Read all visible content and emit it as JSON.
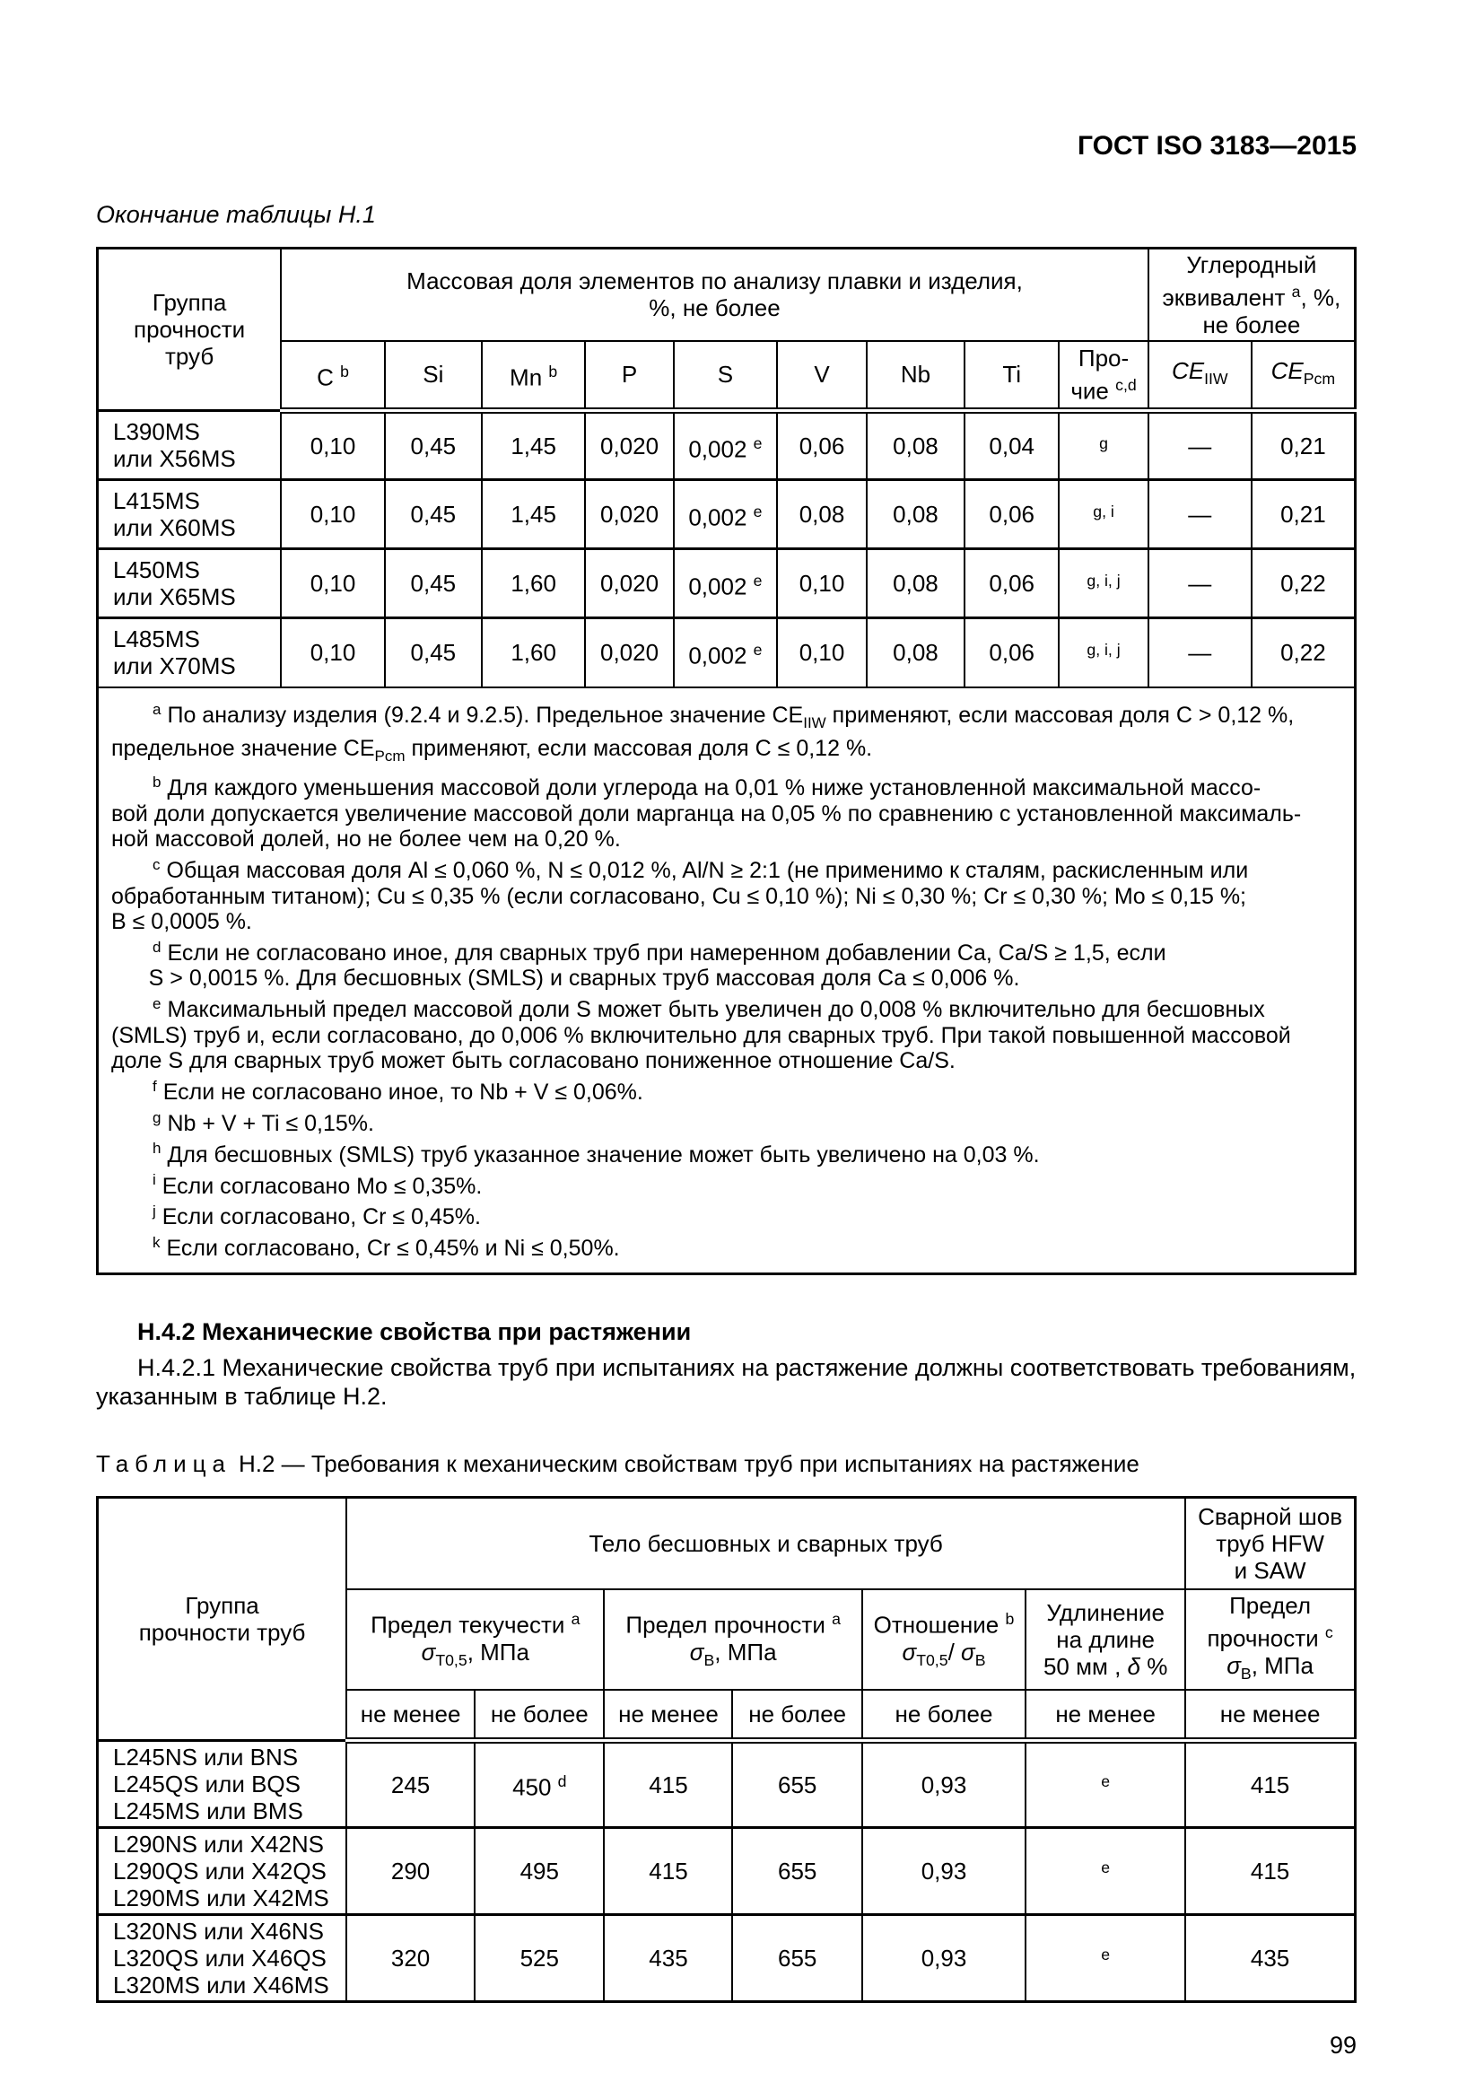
{
  "page": {
    "doc_header": "ГОСТ ISO 3183—2015",
    "continuation_caption": "Окончание таблицы Н.1",
    "page_number": "99"
  },
  "table_h1": {
    "header": {
      "group": "Группа\nпрочности\nтруб",
      "mass_fraction": "Массовая доля элементов по анализу плавки и изделия,\n%, не более",
      "carbon_equiv": "Углеродный\nэквивалент ^{a}, %,\nне более",
      "elements": [
        "C ^{b}",
        "Si",
        "Mn ^{b}",
        "P",
        "S",
        "V",
        "Nb",
        "Ti",
        "Про-\nчие ^{c,d}",
        "@{CE}~{IIW}",
        "@{CE}~{Pcm}"
      ]
    },
    "rows": [
      {
        "grade": "L390MS\nили X56MS",
        "values": [
          "0,10",
          "0,45",
          "1,45",
          "0,020",
          "0,002 ^{e}",
          "0,06",
          "0,08",
          "0,04",
          "^{g}",
          "—",
          "0,21"
        ]
      },
      {
        "grade": "L415MS\nили X60MS",
        "values": [
          "0,10",
          "0,45",
          "1,45",
          "0,020",
          "0,002 ^{e}",
          "0,08",
          "0,08",
          "0,06",
          "^{g, i}",
          "—",
          "0,21"
        ]
      },
      {
        "grade": "L450MS\nили X65MS",
        "values": [
          "0,10",
          "0,45",
          "1,60",
          "0,020",
          "0,002 ^{e}",
          "0,10",
          "0,08",
          "0,06",
          "^{g, i, j}",
          "—",
          "0,22"
        ]
      },
      {
        "grade": "L485MS\nили X70MS",
        "values": [
          "0,10",
          "0,45",
          "1,60",
          "0,020",
          "0,002 ^{e}",
          "0,10",
          "0,08",
          "0,06",
          "^{g, i, j}",
          "—",
          "0,22"
        ]
      }
    ],
    "footnotes": [
      {
        "marker": "a",
        "text": "По анализу изделия (9.2.4 и 9.2.5). Предельное значение CE~{IIW} применяют, если массовая доля С > 0,12 %,\nпредельное значение CE~{Pcm} применяют, если массовая доля С ≤ 0,12 %."
      },
      {
        "marker": "b",
        "text": "Для каждого уменьшения массовой доли углерода на 0,01 % ниже установленной максимальной массо-\nвой доли допускается увеличение массовой доли марганца на 0,05 % по сравнению с установленной максималь-\nной массовой долей, но не более чем на 0,20 %."
      },
      {
        "marker": "c",
        "text": "Общая массовая доля Al ≤ 0,060 %, N ≤ 0,012 %, Al/N ≥ 2:1 (не применимо к сталям, раскисленным или\nобработанным титаном); Cu ≤ 0,35 % (если согласовано, Cu ≤ 0,10 %); Ni ≤ 0,30 %; Cr ≤ 0,30 %; Mo ≤ 0,15 %;\nB ≤ 0,0005 %."
      },
      {
        "marker": "d",
        "text": "Если не согласовано иное, для сварных труб при намеренном добавлении Ca, Ca/S ≥ 1,5, если\n      S > 0,0015 %. Для бесшовных (SMLS) и сварных труб массовая доля Ca ≤ 0,006 %."
      },
      {
        "marker": "e",
        "text": "Максимальный предел массовой доли S может быть увеличен до 0,008 % включительно для бесшовных\n(SMLS) труб и, если согласовано, до 0,006 % включительно для сварных труб. При такой повышенной массовой\nдоле S для сварных труб может быть согласовано пониженное отношение Ca/S."
      },
      {
        "marker": "f",
        "text": "Если не согласовано иное, то Nb + V ≤ 0,06%."
      },
      {
        "marker": "g",
        "text": "Nb + V + Ti ≤ 0,15%."
      },
      {
        "marker": "h",
        "text": "Для бесшовных (SMLS) труб указанное значение может быть увеличено на 0,03 %."
      },
      {
        "marker": "i",
        "text": "Если согласовано Mo ≤ 0,35%."
      },
      {
        "marker": "j",
        "text": "Если согласовано, Cr ≤ 0,45%."
      },
      {
        "marker": "k",
        "text": "Если согласовано, Cr ≤ 0,45% и Ni ≤ 0,50%."
      }
    ]
  },
  "section": {
    "heading": "Н.4.2 Механические свойства при растяжении",
    "paragraph": "Н.4.2.1 Механические свойства труб при испытаниях на растяжение должны соответствовать требованиям,\nуказанным в таблице Н.2."
  },
  "table_h2": {
    "caption_word": "Таблица",
    "caption_rest": "Н.2 — Требования к механическим свойствам труб при испытаниях на растяжение",
    "header": {
      "group": "Группа\nпрочности труб",
      "body": "Тело бесшовных и сварных труб",
      "weld": "Сварной шов\nтруб HFW\nи SAW",
      "yield": "Предел текучести ^{a}\n@{σ}~{Т0,5}, МПа",
      "tensile": "Предел прочности ^{a}\n@{σ}~{В}, МПа",
      "ratio": "Отношение ^{b}\n@{σ}~{Т0,5}/ @{σ}~{В}",
      "elongation": "Удлинение\nна длине\n50 мм , @{δ} %",
      "weld_tensile": "Предел\nпрочности ^{c}\n@{σ}~{В}, МПа",
      "minmax": [
        "не менее",
        "не более",
        "не менее",
        "не более",
        "не более",
        "не менее",
        "не менее"
      ]
    },
    "rows": [
      {
        "grade": "L245NS или BNS\nL245QS или BQS\nL245MS или BMS",
        "values": [
          "245",
          "450 ^{d}",
          "415",
          "655",
          "0,93",
          "^{e}",
          "415"
        ]
      },
      {
        "grade": "L290NS или X42NS\nL290QS или X42QS\nL290MS или X42MS",
        "values": [
          "290",
          "495",
          "415",
          "655",
          "0,93",
          "^{e}",
          "415"
        ]
      },
      {
        "grade": "L320NS или X46NS\nL320QS или X46QS\nL320MS или X46MS",
        "values": [
          "320",
          "525",
          "435",
          "655",
          "0,93",
          "^{e}",
          "435"
        ]
      }
    ]
  }
}
